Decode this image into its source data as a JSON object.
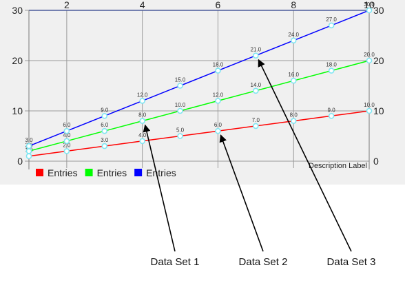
{
  "chart_data": {
    "type": "line",
    "x": [
      1,
      2,
      3,
      4,
      5,
      6,
      7,
      8,
      9,
      10
    ],
    "xlim": [
      1,
      10
    ],
    "x_ticks": [
      2,
      4,
      6,
      8,
      10
    ],
    "ylim": [
      0,
      30
    ],
    "y_ticks": [
      0,
      10,
      20,
      30
    ],
    "grid": true,
    "axes": {
      "left": true,
      "right": true,
      "top": true,
      "bottom": false
    },
    "series": [
      {
        "name": "Entries",
        "color": "#ff0000",
        "values": [
          1.0,
          2.0,
          3.0,
          4.0,
          5.0,
          6.0,
          7.0,
          8.0,
          9.0,
          10.0
        ]
      },
      {
        "name": "Entries",
        "color": "#00ff00",
        "values": [
          2.0,
          4.0,
          6.0,
          8.0,
          10.0,
          12.0,
          14.0,
          16.0,
          18.0,
          20.0
        ]
      },
      {
        "name": "Entries",
        "color": "#0000ff",
        "values": [
          3.0,
          6.0,
          9.0,
          12.0,
          15.0,
          18.0,
          21.0,
          24.0,
          27.0,
          30.0
        ]
      }
    ],
    "value_label_decimals": 1,
    "description": "Description Label",
    "legend_position": "bottom-left",
    "annotations": [
      {
        "text": "Data Set 1",
        "series_index": 1,
        "point_x": 4
      },
      {
        "text": "Data Set 2",
        "series_index": 0,
        "point_x": 6
      },
      {
        "text": "Data Set 3",
        "series_index": 2,
        "point_x": 7
      }
    ]
  }
}
